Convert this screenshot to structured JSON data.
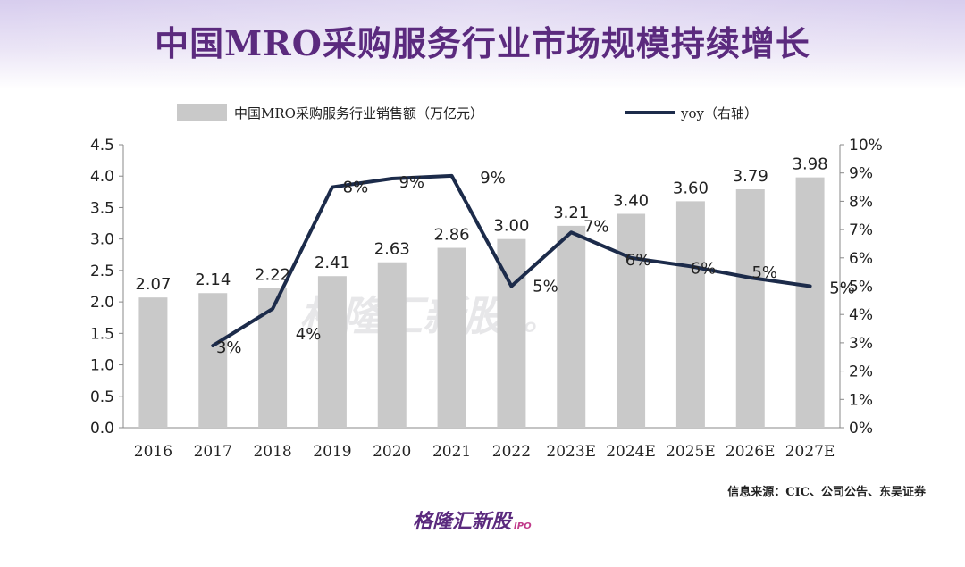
{
  "page": {
    "title": "中国MRO采购服务行业市场规模持续增长",
    "source": "信息来源：CIC、公司公告、东吴证券",
    "brand": {
      "name": "格隆汇新股",
      "suffix": "IPO"
    },
    "watermark": {
      "name": "格隆汇新股",
      "suffix": "IPO"
    }
  },
  "colors": {
    "title": "#5b2a7e",
    "bar": "#c9c9c9",
    "line": "#1c2b4a",
    "axis_text": "#222222",
    "brand": "#5b2a7e",
    "brand_accent": "#c03a8a"
  },
  "chart_data": {
    "type": "bar",
    "categories": [
      "2016",
      "2017",
      "2018",
      "2019",
      "2020",
      "2021",
      "2022",
      "2023E",
      "2024E",
      "2025E",
      "2026E",
      "2027E"
    ],
    "series": [
      {
        "name": "中国MRO采购服务行业销售额（万亿元）",
        "type": "bar",
        "axis": "left",
        "values": [
          2.07,
          2.14,
          2.22,
          2.41,
          2.63,
          2.86,
          3.0,
          3.21,
          3.4,
          3.6,
          3.79,
          3.98
        ],
        "labels": [
          "2.07",
          "2.14",
          "2.22",
          "2.41",
          "2.63",
          "2.86",
          "3.00",
          "3.21",
          "3.40",
          "3.60",
          "3.79",
          "3.98"
        ]
      },
      {
        "name": "yoy（右轴）",
        "type": "line",
        "axis": "right",
        "values": [
          null,
          2.9,
          4.2,
          8.5,
          8.8,
          8.9,
          5.0,
          6.9,
          6.0,
          5.7,
          5.3,
          5.0
        ],
        "labels": [
          "",
          "3%",
          "4%",
          "8%",
          "9%",
          "9%",
          "5%",
          "7%",
          "6%",
          "6%",
          "5%",
          "5%"
        ]
      }
    ],
    "y_left": {
      "range": [
        0,
        4.5
      ],
      "ticks": [
        "0.0",
        "0.5",
        "1.0",
        "1.5",
        "2.0",
        "2.5",
        "3.0",
        "3.5",
        "4.0",
        "4.5"
      ]
    },
    "y_right": {
      "range": [
        0,
        10
      ],
      "ticks": [
        "0%",
        "1%",
        "2%",
        "3%",
        "4%",
        "5%",
        "6%",
        "7%",
        "8%",
        "9%",
        "10%"
      ]
    },
    "legend": "top"
  }
}
